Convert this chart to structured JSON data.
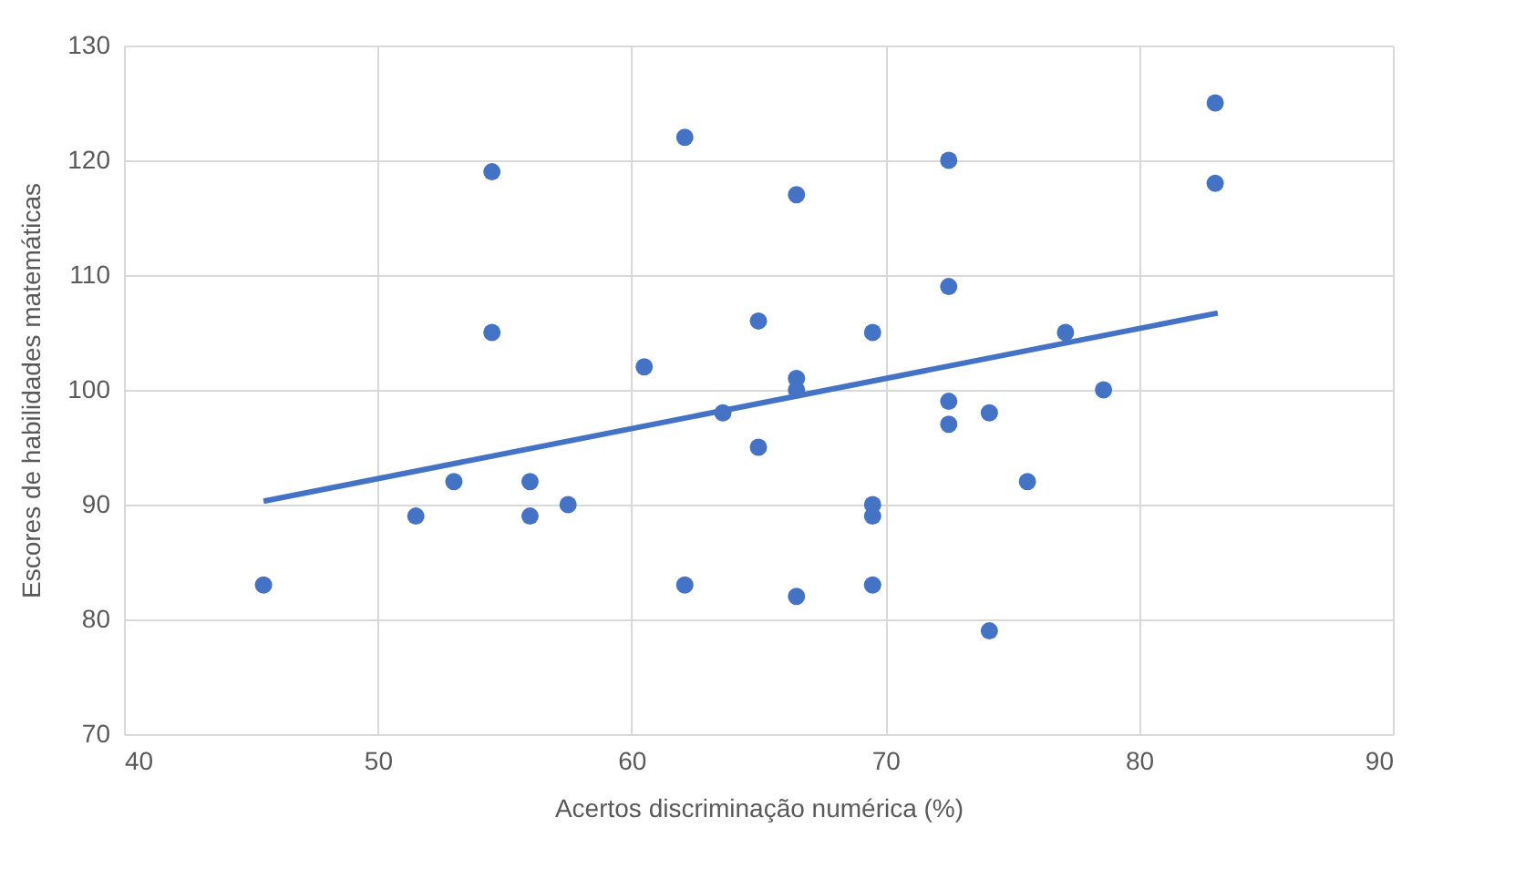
{
  "chart_data": {
    "type": "scatter",
    "xlabel": "Acertos discriminação numérica (%)",
    "ylabel": "Escores de habilidades matemáticas",
    "xlim": [
      40,
      90
    ],
    "xticks": [
      40,
      50,
      60,
      70,
      80,
      90
    ],
    "ylim": [
      70,
      130
    ],
    "yticks": [
      70,
      80,
      90,
      100,
      110,
      120,
      130
    ],
    "grid": true,
    "series": [
      {
        "marker": "circle",
        "color": "#4472c4",
        "x": [
          45.5,
          51.5,
          53,
          54.5,
          54.5,
          56,
          56,
          57.5,
          60.5,
          62.1,
          62.1,
          63.6,
          65,
          65,
          66.5,
          66.5,
          66.5,
          66.5,
          69.5,
          69.5,
          69.5,
          69.5,
          72.5,
          72.5,
          72.5,
          72.5,
          74.1,
          74.1,
          75.6,
          77.1,
          78.6,
          83,
          83
        ],
        "values": [
          83,
          89,
          92,
          119,
          105,
          92,
          89,
          90,
          102,
          122,
          83,
          98,
          106,
          95,
          117,
          101,
          100,
          82,
          105,
          90,
          89,
          83,
          120,
          109,
          99,
          97,
          98,
          79,
          92,
          105,
          100,
          125,
          118
        ]
      },
      {
        "type": "line",
        "marker": "none",
        "color": "#4472c4",
        "x": [
          45.5,
          83.1
        ],
        "values": [
          90.3,
          106.7
        ]
      }
    ]
  }
}
